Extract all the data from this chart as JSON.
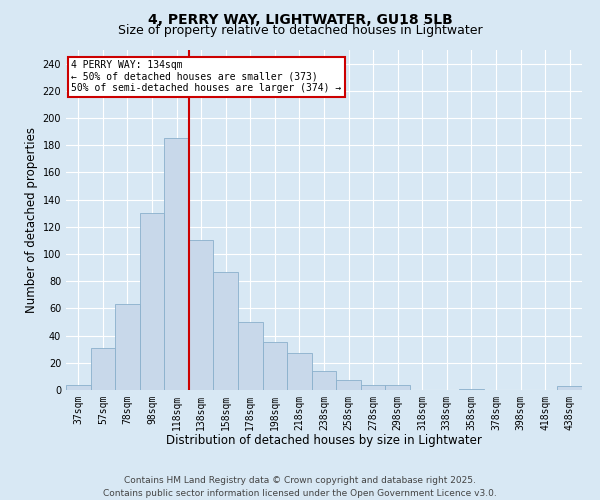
{
  "title_line1": "4, PERRY WAY, LIGHTWATER, GU18 5LB",
  "title_line2": "Size of property relative to detached houses in Lightwater",
  "xlabel": "Distribution of detached houses by size in Lightwater",
  "ylabel": "Number of detached properties",
  "bar_color": "#c8d8ea",
  "bar_edge_color": "#8ab0cc",
  "categories": [
    "37sqm",
    "57sqm",
    "78sqm",
    "98sqm",
    "118sqm",
    "138sqm",
    "158sqm",
    "178sqm",
    "198sqm",
    "218sqm",
    "238sqm",
    "258sqm",
    "278sqm",
    "298sqm",
    "318sqm",
    "338sqm",
    "358sqm",
    "378sqm",
    "398sqm",
    "418sqm",
    "438sqm"
  ],
  "values": [
    4,
    31,
    63,
    130,
    185,
    110,
    87,
    50,
    35,
    27,
    14,
    7,
    4,
    4,
    0,
    0,
    1,
    0,
    0,
    0,
    3
  ],
  "ylim": [
    0,
    250
  ],
  "yticks": [
    0,
    20,
    40,
    60,
    80,
    100,
    120,
    140,
    160,
    180,
    200,
    220,
    240
  ],
  "vline_color": "#cc0000",
  "vline_pos": 4.5,
  "annotation_text": "4 PERRY WAY: 134sqm\n← 50% of detached houses are smaller (373)\n50% of semi-detached houses are larger (374) →",
  "annotation_box_color": "#cc0000",
  "footer_line1": "Contains HM Land Registry data © Crown copyright and database right 2025.",
  "footer_line2": "Contains public sector information licensed under the Open Government Licence v3.0.",
  "background_color": "#d8e8f4",
  "plot_bg_color": "#d8e8f4",
  "grid_color": "#ffffff",
  "title_fontsize": 10,
  "subtitle_fontsize": 9,
  "tick_fontsize": 7,
  "label_fontsize": 8.5,
  "footer_fontsize": 6.5
}
